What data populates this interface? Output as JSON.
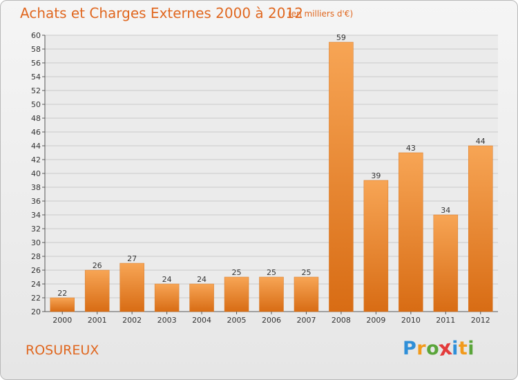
{
  "chart_data": {
    "type": "bar",
    "title": "Achats et Charges Externes 2000 à 2012",
    "subtitle": "(en milliers d'€)",
    "categories": [
      "2000",
      "2001",
      "2002",
      "2003",
      "2004",
      "2005",
      "2006",
      "2007",
      "2008",
      "2009",
      "2010",
      "2011",
      "2012"
    ],
    "values": [
      22,
      26,
      27,
      24,
      24,
      25,
      25,
      25,
      59,
      39,
      43,
      34,
      44
    ],
    "ylim": [
      20,
      60
    ],
    "ytick_step": 2,
    "grid": true,
    "bar_color": "#f28a2e"
  },
  "commune": "ROSUREUX",
  "logo": {
    "text": "Proxiti",
    "letter_colors": [
      "#2f8fd8",
      "#f29a1c",
      "#5aa53a",
      "#e33b3b",
      "#2f8fd8",
      "#f29a1c",
      "#5aa53a"
    ]
  }
}
